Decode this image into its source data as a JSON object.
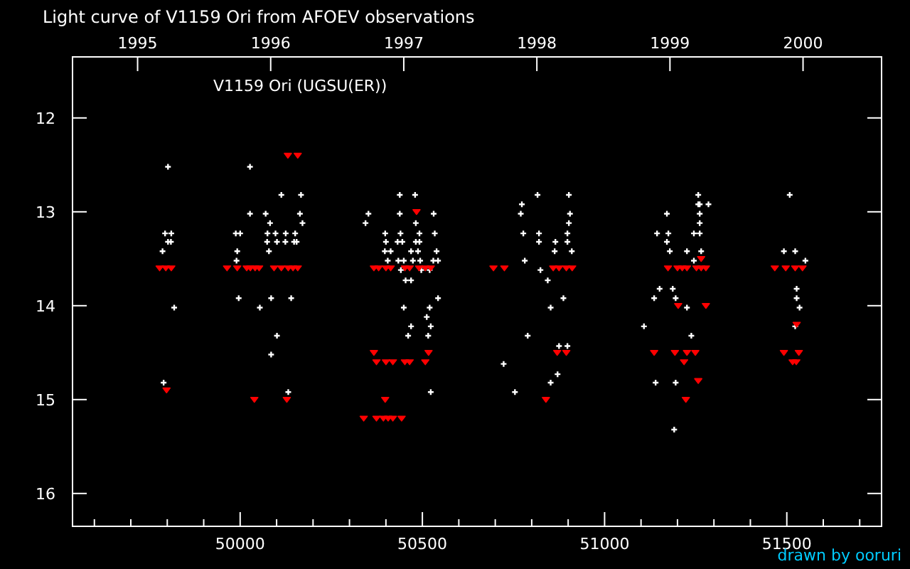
{
  "chart_data": {
    "type": "scatter",
    "title": "Light curve of V1159 Ori from AFOEV observations",
    "annotations": [
      "V1159 Ori (UGSU(ER))",
      "drawn by ooruri"
    ],
    "xlim": [
      49540,
      51760
    ],
    "ylim": [
      16.35,
      11.35
    ],
    "xticks": [
      {
        "value": 49600,
        "label": null
      },
      {
        "value": 49700,
        "label": null
      },
      {
        "value": 49800,
        "label": null
      },
      {
        "value": 49900,
        "label": null
      },
      50000,
      {
        "value": 50100,
        "label": null
      },
      {
        "value": 50200,
        "label": null
      },
      {
        "value": 50300,
        "label": null
      },
      {
        "value": 50400,
        "label": null
      },
      50500,
      {
        "value": 50600,
        "label": null
      },
      {
        "value": 50700,
        "label": null
      },
      {
        "value": 50800,
        "label": null
      },
      {
        "value": 50900,
        "label": null
      },
      51000,
      {
        "value": 51100,
        "label": null
      },
      {
        "value": 51200,
        "label": null
      },
      {
        "value": 51300,
        "label": null
      },
      {
        "value": 51400,
        "label": null
      },
      51500,
      {
        "value": 51600,
        "label": null
      },
      {
        "value": 51700,
        "label": null
      }
    ],
    "x2lim": [
      1994.511,
      2000.59
    ],
    "x2ticks": [
      1995,
      1996,
      1997,
      1998,
      1999,
      2000
    ],
    "yticks": [
      12,
      13,
      14,
      15,
      16
    ],
    "grid": false,
    "series": [
      {
        "color": "#ffffff",
        "marker": "cross",
        "x": [
          49802,
          49794,
          49811,
          49802,
          49810,
          49787,
          49819,
          49790,
          50027,
          49988,
          50000,
          49992,
          49990,
          49996,
          50113,
          50167,
          50027,
          50070,
          50164,
          50082,
          50171,
          50075,
          50097,
          50125,
          50151,
          50074,
          50101,
          50124,
          50148,
          50155,
          50079,
          50085,
          50140,
          50054,
          50101,
          50085,
          50132,
          50438,
          50480,
          50352,
          50438,
          50531,
          50344,
          50482,
          50398,
          50440,
          50492,
          50534,
          50400,
          50432,
          50445,
          50482,
          50492,
          50397,
          50413,
          50469,
          50488,
          50539,
          50405,
          50434,
          50449,
          50474,
          50494,
          50530,
          50543,
          50441,
          50497,
          50520,
          50454,
          50469,
          50543,
          50449,
          50520,
          50512,
          50469,
          50523,
          50461,
          50516,
          50523,
          50816,
          50902,
          50773,
          50770,
          50905,
          50902,
          50777,
          50820,
          50898,
          50820,
          50865,
          50898,
          50863,
          50910,
          50781,
          50824,
          50844,
          50887,
          50852,
          50789,
          50875,
          50898,
          50871,
          50852,
          50723,
          50754,
          51257,
          51257,
          51261,
          51285,
          51171,
          51261,
          51261,
          51144,
          51175,
          51245,
          51261,
          51171,
          51179,
          51226,
          51265,
          51245,
          51151,
          51187,
          51136,
          51195,
          51226,
          51108,
          51238,
          51140,
          51195,
          51191,
          51508,
          51492,
          51523,
          51551,
          51527,
          51527,
          51535,
          51523
        ],
        "values": [
          12.52,
          13.23,
          13.23,
          13.32,
          13.32,
          13.42,
          14.02,
          14.82,
          12.52,
          13.23,
          13.23,
          13.42,
          13.52,
          13.92,
          12.82,
          12.82,
          13.02,
          13.02,
          13.02,
          13.12,
          13.12,
          13.23,
          13.23,
          13.23,
          13.23,
          13.32,
          13.32,
          13.32,
          13.32,
          13.32,
          13.42,
          13.92,
          13.92,
          14.02,
          14.32,
          14.52,
          14.92,
          12.82,
          12.82,
          13.02,
          13.02,
          13.02,
          13.12,
          13.12,
          13.23,
          13.23,
          13.23,
          13.23,
          13.32,
          13.32,
          13.32,
          13.32,
          13.32,
          13.42,
          13.42,
          13.42,
          13.42,
          13.42,
          13.52,
          13.52,
          13.52,
          13.52,
          13.52,
          13.52,
          13.52,
          13.62,
          13.62,
          13.62,
          13.73,
          13.73,
          13.92,
          14.02,
          14.02,
          14.12,
          14.22,
          14.22,
          14.32,
          14.32,
          14.92,
          12.82,
          12.82,
          12.92,
          13.02,
          13.02,
          13.12,
          13.23,
          13.23,
          13.23,
          13.32,
          13.32,
          13.32,
          13.42,
          13.42,
          13.52,
          13.62,
          13.73,
          13.92,
          14.02,
          14.32,
          14.43,
          14.43,
          14.73,
          14.82,
          14.62,
          14.92,
          12.82,
          12.92,
          12.92,
          12.92,
          13.02,
          13.02,
          13.12,
          13.23,
          13.23,
          13.23,
          13.23,
          13.32,
          13.42,
          13.42,
          13.42,
          13.52,
          13.82,
          13.82,
          13.92,
          13.92,
          14.02,
          14.22,
          14.32,
          14.82,
          14.82,
          15.32,
          12.82,
          13.42,
          13.42,
          13.52,
          13.82,
          13.92,
          14.02,
          14.22
        ]
      },
      {
        "color": "#ff0000",
        "marker": "triangle",
        "x": [
          49779,
          49796,
          49811,
          49964,
          49992,
          50018,
          50028,
          50041,
          50052,
          50093,
          50113,
          50132,
          50145,
          50158,
          50131,
          50158,
          49798,
          50039,
          50128,
          50484,
          50367,
          50380,
          50400,
          50413,
          50452,
          50465,
          50491,
          50508,
          50523,
          50695,
          50725,
          50859,
          50875,
          50895,
          50911,
          50367,
          50517,
          50374,
          50400,
          50419,
          50452,
          50465,
          50508,
          50398,
          50339,
          50374,
          50393,
          50406,
          50419,
          50443,
          50870,
          50895,
          50839,
          51265,
          51174,
          51200,
          51213,
          51226,
          51252,
          51265,
          51278,
          51467,
          51497,
          51523,
          51543,
          51202,
          51278,
          51527,
          51136,
          51193,
          51226,
          51249,
          51492,
          51533,
          51218,
          51516,
          51526,
          51257,
          51223
        ],
        "values": [
          13.6,
          13.6,
          13.6,
          13.6,
          13.6,
          13.6,
          13.6,
          13.6,
          13.6,
          13.6,
          13.6,
          13.6,
          13.6,
          13.6,
          12.4,
          12.4,
          14.9,
          15.0,
          15.0,
          13.0,
          13.6,
          13.6,
          13.6,
          13.6,
          13.6,
          13.6,
          13.6,
          13.6,
          13.6,
          13.6,
          13.6,
          13.6,
          13.6,
          13.6,
          13.6,
          14.5,
          14.5,
          14.6,
          14.6,
          14.6,
          14.6,
          14.6,
          14.6,
          15.0,
          15.2,
          15.2,
          15.2,
          15.2,
          15.2,
          15.2,
          14.5,
          14.5,
          15.0,
          13.5,
          13.6,
          13.6,
          13.6,
          13.6,
          13.6,
          13.6,
          13.6,
          13.6,
          13.6,
          13.6,
          13.6,
          14.0,
          14.0,
          14.2,
          14.5,
          14.5,
          14.5,
          14.5,
          14.5,
          14.5,
          14.6,
          14.6,
          14.6,
          14.8,
          15.0
        ]
      }
    ]
  }
}
